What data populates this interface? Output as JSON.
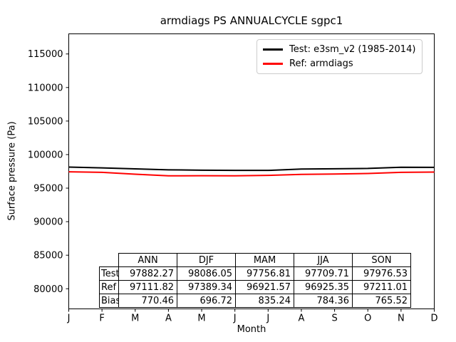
{
  "chart_data": {
    "type": "line",
    "title": "armdiags PS ANNUALCYCLE sgpc1",
    "xlabel": "Month",
    "ylabel": "Surface pressure (Pa)",
    "x_tick_labels": [
      "J",
      "F",
      "M",
      "A",
      "M",
      "J",
      "J",
      "A",
      "S",
      "O",
      "N",
      "D"
    ],
    "y_ticks": [
      80000,
      85000,
      90000,
      95000,
      100000,
      105000,
      110000,
      115000
    ],
    "ylim": [
      77000,
      118000
    ],
    "grid": false,
    "legend_position": "upper right",
    "axis_color": "#000000",
    "series": [
      {
        "name": "Test: e3sm_v2 (1985-2014)",
        "color": "#000000",
        "values": [
          98143,
          98020,
          97870,
          97730,
          97670,
          97650,
          97640,
          97840,
          97880,
          97940,
          98110,
          98095
        ]
      },
      {
        "name": "Ref: armdiags",
        "color": "#ff0000",
        "values": [
          97430,
          97350,
          97080,
          96830,
          96855,
          96830,
          96900,
          97046,
          97100,
          97180,
          97353,
          97388
        ]
      }
    ]
  },
  "stats_table": {
    "columns": [
      "ANN",
      "DJF",
      "MAM",
      "JJA",
      "SON"
    ],
    "rows": [
      {
        "label": "Test",
        "values": [
          "97882.27",
          "98086.05",
          "97756.81",
          "97709.71",
          "97976.53"
        ]
      },
      {
        "label": "Ref",
        "values": [
          "97111.82",
          "97389.34",
          "96921.57",
          "96925.35",
          "97211.01"
        ]
      },
      {
        "label": "Bias",
        "values": [
          "770.46",
          "696.72",
          "835.24",
          "784.36",
          "765.52"
        ]
      }
    ]
  }
}
